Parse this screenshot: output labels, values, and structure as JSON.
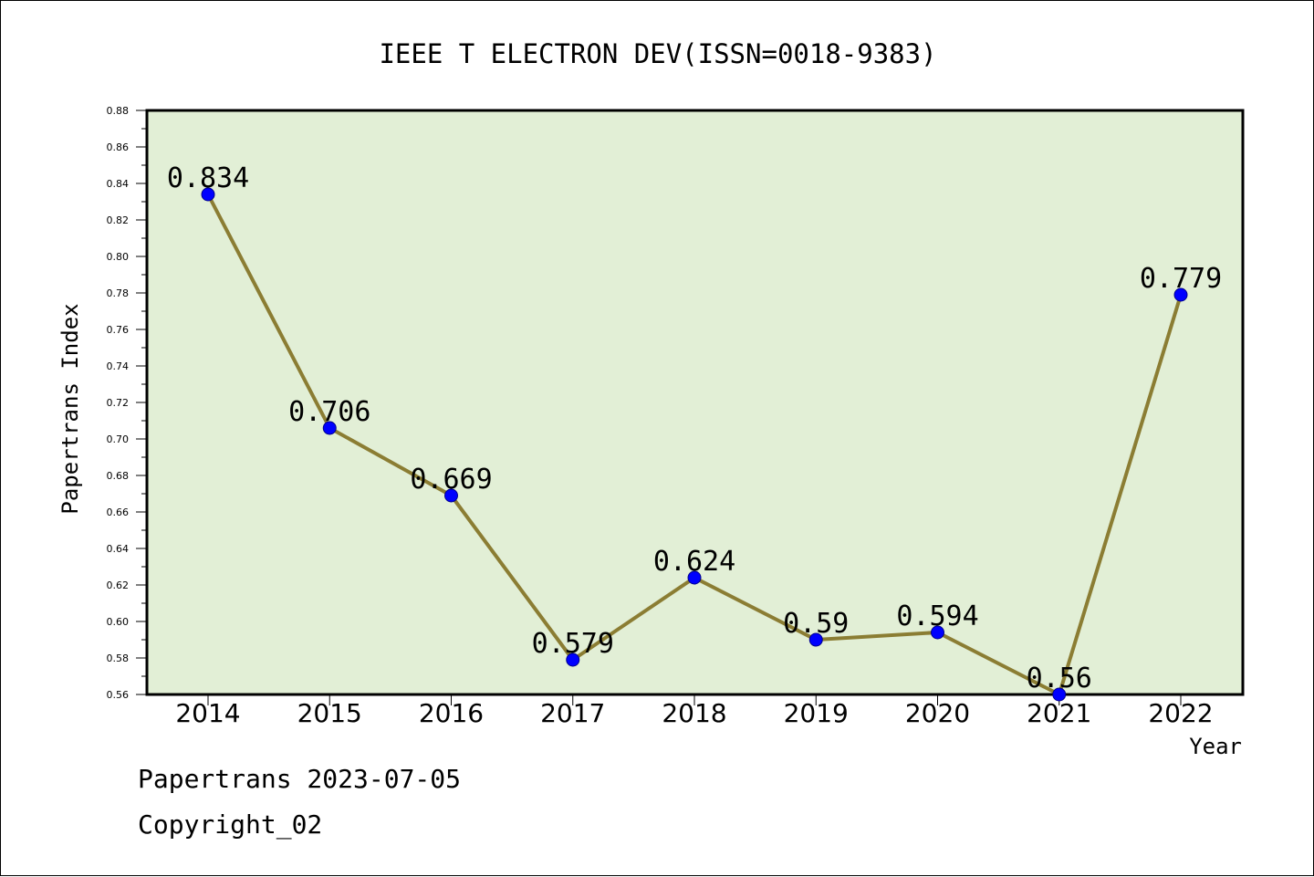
{
  "chart_data": {
    "type": "line",
    "title": "IEEE T ELECTRON DEV(ISSN=0018-9383)",
    "xlabel": "Year",
    "ylabel": "Papertrans Index",
    "categories": [
      "2014",
      "2015",
      "2016",
      "2017",
      "2018",
      "2019",
      "2020",
      "2021",
      "2022"
    ],
    "values": [
      0.834,
      0.706,
      0.669,
      0.579,
      0.624,
      0.59,
      0.594,
      0.56,
      0.779
    ],
    "data_labels": [
      "0.834",
      "0.706",
      "0.669",
      "0.579",
      "0.624",
      "0.59",
      "0.594",
      "0.56",
      "0.779"
    ],
    "ylim": [
      0.56,
      0.88
    ],
    "yticks": [
      "0.56",
      "0.58",
      "0.60",
      "0.62",
      "0.64",
      "0.66",
      "0.68",
      "0.70",
      "0.72",
      "0.74",
      "0.76",
      "0.78",
      "0.80",
      "0.82",
      "0.84",
      "0.86",
      "0.88"
    ],
    "grid": false,
    "legend": "none",
    "colors": {
      "plot_background": "#e2efd6",
      "line": "#8b7d33",
      "marker": "#0000ff"
    }
  },
  "footer": {
    "line1": "Papertrans 2023-07-05",
    "line2": "Copyright_02"
  }
}
